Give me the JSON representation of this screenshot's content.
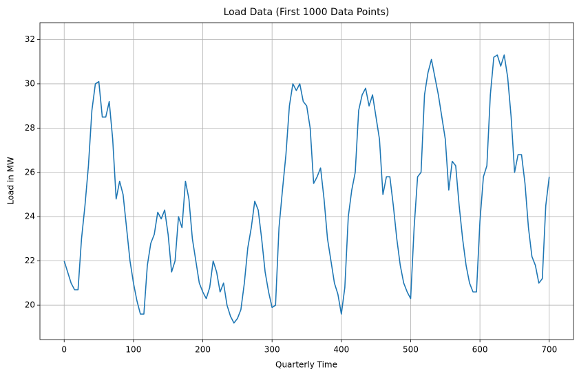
{
  "chart_data": {
    "type": "line",
    "title": "Load Data (First 1000 Data Points)",
    "x_label": "Quarterly Time",
    "y_label": "Load in MW",
    "xlim": [
      -35,
      735
    ],
    "ylim": [
      18.45,
      32.76
    ],
    "xticks": [
      0,
      100,
      200,
      300,
      400,
      500,
      600,
      700
    ],
    "yticks": [
      20,
      22,
      24,
      26,
      28,
      30,
      32
    ],
    "grid": true,
    "x": [
      0,
      5,
      10,
      15,
      20,
      25,
      30,
      35,
      40,
      45,
      50,
      55,
      60,
      65,
      70,
      75,
      80,
      85,
      90,
      95,
      100,
      105,
      110,
      115,
      120,
      125,
      130,
      135,
      140,
      145,
      150,
      155,
      160,
      165,
      170,
      175,
      180,
      185,
      190,
      195,
      200,
      205,
      210,
      215,
      220,
      225,
      230,
      235,
      240,
      245,
      250,
      255,
      260,
      265,
      270,
      275,
      280,
      285,
      290,
      295,
      300,
      305,
      310,
      315,
      320,
      325,
      330,
      335,
      340,
      345,
      350,
      355,
      360,
      365,
      370,
      375,
      380,
      385,
      390,
      395,
      400,
      405,
      410,
      415,
      420,
      425,
      430,
      435,
      440,
      445,
      450,
      455,
      460,
      465,
      470,
      475,
      480,
      485,
      490,
      495,
      500,
      505,
      510,
      515,
      520,
      525,
      530,
      535,
      540,
      545,
      550,
      555,
      560,
      565,
      570,
      575,
      580,
      585,
      590,
      595,
      600,
      605,
      610,
      615,
      620,
      625,
      630,
      635,
      640,
      645,
      650,
      655,
      660,
      665,
      670,
      675,
      680,
      685,
      690,
      695,
      700
    ],
    "series": [
      {
        "name": "Load",
        "color": "#1f77b4",
        "values": [
          22.0,
          21.5,
          21.0,
          20.7,
          20.7,
          23.0,
          24.5,
          26.3,
          28.8,
          30.0,
          30.1,
          28.5,
          28.5,
          29.2,
          27.5,
          24.8,
          25.6,
          25.0,
          23.5,
          22.0,
          21.0,
          20.2,
          19.6,
          19.6,
          21.8,
          22.8,
          23.2,
          24.2,
          23.9,
          24.3,
          23.2,
          21.5,
          22.0,
          24.0,
          23.5,
          25.6,
          24.8,
          23.0,
          22.0,
          21.0,
          20.6,
          20.3,
          20.8,
          22.0,
          21.5,
          20.6,
          21.0,
          20.0,
          19.5,
          19.2,
          19.4,
          19.8,
          21.0,
          22.6,
          23.5,
          24.7,
          24.3,
          23.0,
          21.5,
          20.6,
          19.9,
          20.0,
          23.5,
          25.2,
          26.8,
          29.0,
          30.0,
          29.7,
          30.0,
          29.2,
          29.0,
          28.0,
          25.5,
          25.8,
          26.2,
          24.8,
          23.0,
          22.0,
          21.0,
          20.5,
          19.6,
          20.8,
          24.0,
          25.2,
          26.0,
          28.8,
          29.5,
          29.8,
          29.0,
          29.5,
          28.5,
          27.5,
          25.0,
          25.8,
          25.8,
          24.5,
          23.0,
          21.8,
          21.0,
          20.6,
          20.3,
          23.5,
          25.8,
          26.0,
          29.5,
          30.5,
          31.1,
          30.3,
          29.5,
          28.5,
          27.5,
          25.2,
          26.5,
          26.3,
          24.5,
          23.0,
          21.8,
          21.0,
          20.6,
          20.6,
          23.8,
          25.8,
          26.3,
          29.5,
          31.2,
          31.3,
          30.8,
          31.3,
          30.3,
          28.5,
          26.0,
          26.8,
          26.8,
          25.5,
          23.5,
          22.2,
          21.8,
          21.0,
          21.2,
          24.5,
          25.8
        ]
      }
    ]
  }
}
